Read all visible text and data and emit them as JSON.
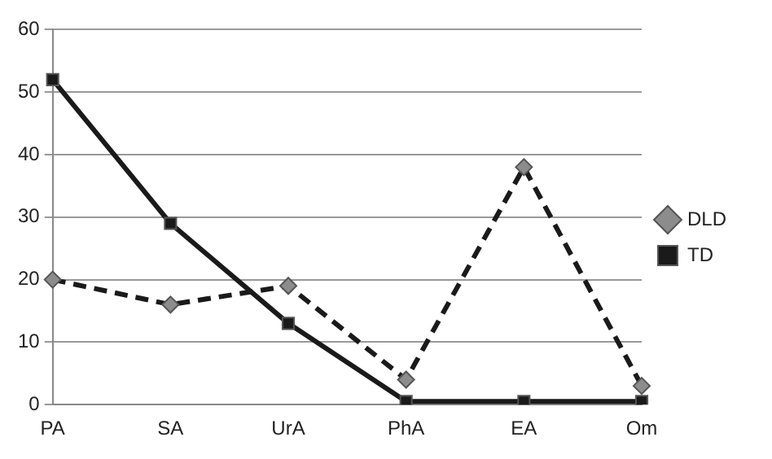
{
  "chart_data": {
    "type": "line",
    "categories": [
      "PA",
      "SA",
      "UrA",
      "PhA",
      "EA",
      "Om"
    ],
    "series": [
      {
        "name": "DLD",
        "color": "#1a1a1a",
        "values": [
          20,
          16,
          19,
          4,
          38,
          3
        ],
        "marker": "diamond",
        "line_style": "dashed"
      },
      {
        "name": "TD",
        "color": "#1a1a1a",
        "values": [
          52,
          29,
          13,
          0.5,
          0.5,
          0.5
        ],
        "marker": "square",
        "line_style": "solid"
      }
    ],
    "ylim": [
      0,
      60
    ],
    "yticks": [
      0,
      10,
      20,
      30,
      40,
      50,
      60
    ],
    "grid": "y",
    "legend": "right"
  }
}
